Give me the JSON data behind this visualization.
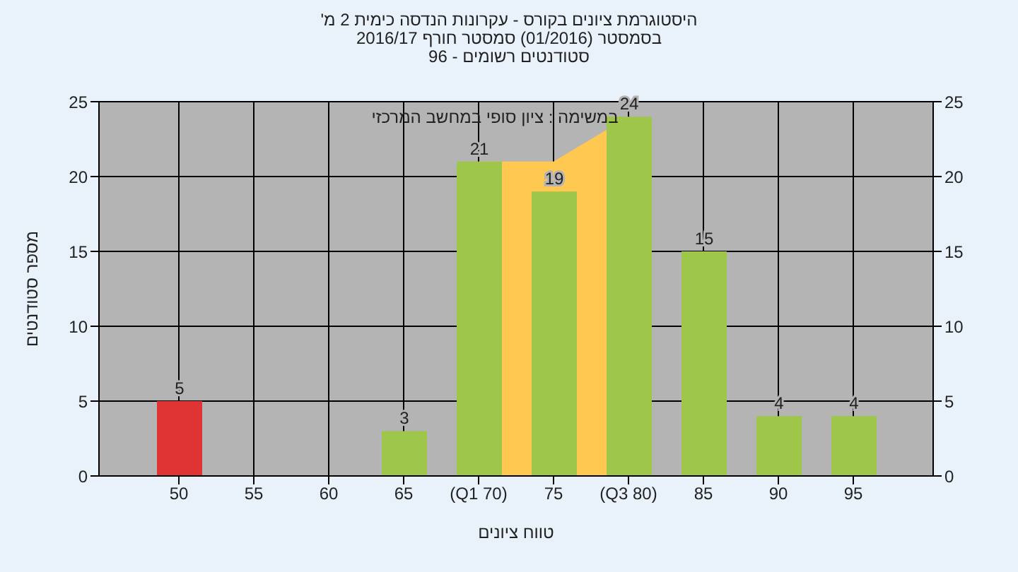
{
  "chart_data": {
    "type": "bar",
    "title": "היסטוגרמת ציונים בקורס - עקרונות הנדסה כימית 2 מ'",
    "subtitle": "בסמסטר (01/2016) סמסטר חורף 2016/17\nסטודנטים רשומים - 96",
    "xlabel": "טווח ציונים",
    "ylabel": "מספר סטודנטים",
    "annotations": [
      "במשימה : ציון סופי במחשב המרכזי"
    ],
    "categories": [
      "50",
      "55",
      "60",
      "65",
      "(Q1 70)",
      "75",
      "(Q3 80)",
      "85",
      "90",
      "95"
    ],
    "series": [
      {
        "type": "area",
        "color": "#ffc850",
        "values": [
          null,
          null,
          null,
          null,
          21,
          21,
          24,
          null,
          null,
          null
        ]
      },
      {
        "colors": [
          "#e03434",
          "#9dc64a",
          "#9dc64a",
          "#9dc64a",
          "#9dc64a",
          "#9dc64a",
          "#9dc64a",
          "#9dc64a",
          "#9dc64a",
          "#9dc64a"
        ],
        "values": [
          5,
          0,
          0,
          3,
          21,
          19,
          24,
          15,
          4,
          4
        ],
        "value_labels": [
          "5",
          null,
          null,
          "3",
          "21",
          "19",
          "24",
          "15",
          "4",
          "4"
        ]
      }
    ],
    "ylim": [
      0,
      25
    ],
    "yticks": [
      0,
      5,
      10,
      15,
      20,
      25
    ],
    "y2lim": [
      0,
      25
    ],
    "y2ticks": [
      0,
      5,
      10,
      15,
      20,
      25
    ],
    "grid": true
  }
}
